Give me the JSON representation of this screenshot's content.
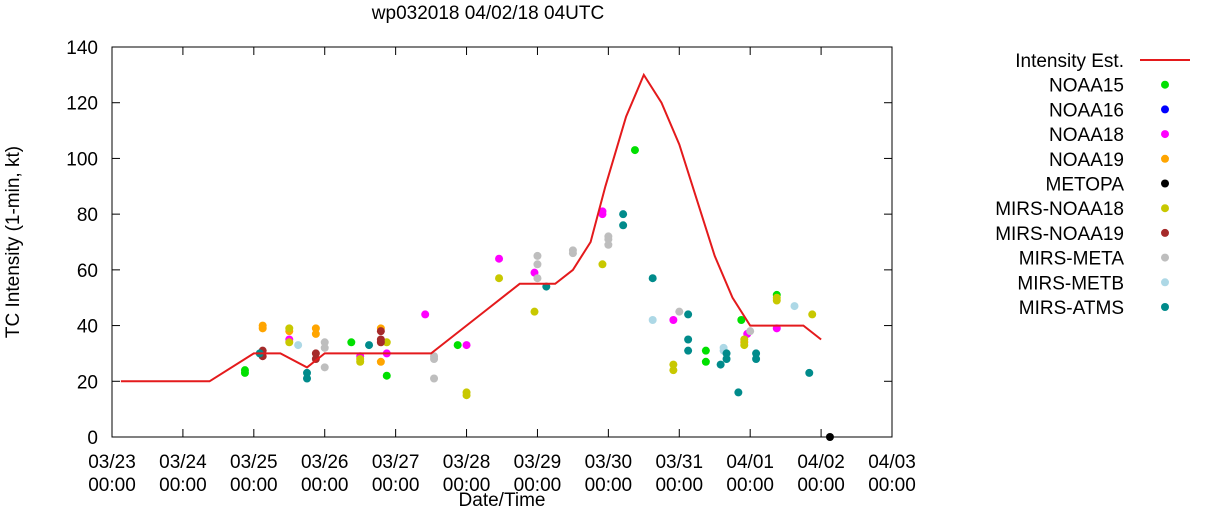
{
  "chart_data": {
    "type": "scatter",
    "title": "wp032018 04/02/18 04UTC",
    "xlabel": "Date/Time",
    "ylabel": "TC Intensity (1-min, kt)",
    "ylim": [
      0,
      140
    ],
    "yticks": [
      0,
      20,
      40,
      60,
      80,
      100,
      120,
      140
    ],
    "xlim": [
      "2018-03-23T00:00",
      "2018-04-03T00:00"
    ],
    "xtick_labels": [
      [
        "03/23",
        "00:00"
      ],
      [
        "03/24",
        "00:00"
      ],
      [
        "03/25",
        "00:00"
      ],
      [
        "03/26",
        "00:00"
      ],
      [
        "03/27",
        "00:00"
      ],
      [
        "03/28",
        "00:00"
      ],
      [
        "03/29",
        "00:00"
      ],
      [
        "03/30",
        "00:00"
      ],
      [
        "03/31",
        "00:00"
      ],
      [
        "04/01",
        "00:00"
      ],
      [
        "04/02",
        "00:00"
      ],
      [
        "04/03",
        "00:00"
      ]
    ],
    "grid": false,
    "legend_position": "right",
    "line_series": {
      "name": "Intensity Est.",
      "color": "#e41a1c",
      "x": [
        "2018-03-23T03:00",
        "2018-03-24T09:00",
        "2018-03-25T00:00",
        "2018-03-25T09:00",
        "2018-03-25T18:00",
        "2018-03-26T00:00",
        "2018-03-26T12:00",
        "2018-03-27T00:00",
        "2018-03-27T06:00",
        "2018-03-27T12:00",
        "2018-03-28T06:00",
        "2018-03-28T18:00",
        "2018-03-29T06:00",
        "2018-03-29T12:00",
        "2018-03-29T18:00",
        "2018-03-29T23:00",
        "2018-03-30T06:00",
        "2018-03-30T12:00",
        "2018-03-30T18:00",
        "2018-03-31T00:00",
        "2018-03-31T06:00",
        "2018-03-31T12:00",
        "2018-03-31T18:00",
        "2018-04-01T00:00",
        "2018-04-01T18:00",
        "2018-04-02T00:00"
      ],
      "y": [
        20,
        20,
        30,
        30,
        25,
        30,
        30,
        30,
        30,
        30,
        45,
        55,
        55,
        60,
        70,
        90,
        115,
        130,
        120,
        105,
        85,
        65,
        50,
        40,
        40,
        35
      ]
    },
    "series": [
      {
        "name": "NOAA15",
        "color": "#00e000",
        "points": [
          [
            "2018-03-24T21:00",
            23
          ],
          [
            "2018-03-24T21:00",
            24
          ],
          [
            "2018-03-26T09:00",
            34
          ],
          [
            "2018-03-26T21:00",
            22
          ],
          [
            "2018-03-27T21:00",
            33
          ],
          [
            "2018-03-30T09:00",
            103
          ],
          [
            "2018-03-31T09:00",
            31
          ],
          [
            "2018-03-31T09:00",
            27
          ],
          [
            "2018-03-31T21:00",
            42
          ],
          [
            "2018-04-01T09:00",
            51
          ]
        ]
      },
      {
        "name": "NOAA16",
        "color": "#0000ff",
        "points": []
      },
      {
        "name": "NOAA18",
        "color": "#ff00ff",
        "points": [
          [
            "2018-03-25T12:00",
            35
          ],
          [
            "2018-03-26T12:00",
            29
          ],
          [
            "2018-03-26T21:00",
            30
          ],
          [
            "2018-03-27T10:00",
            44
          ],
          [
            "2018-03-28T00:00",
            33
          ],
          [
            "2018-03-28T11:00",
            64
          ],
          [
            "2018-03-28T23:00",
            59
          ],
          [
            "2018-03-29T22:00",
            81
          ],
          [
            "2018-03-29T22:00",
            80
          ],
          [
            "2018-03-30T22:00",
            42
          ],
          [
            "2018-04-01T09:00",
            39
          ],
          [
            "2018-03-31T23:00",
            37
          ]
        ]
      },
      {
        "name": "NOAA19",
        "color": "#ffa500",
        "points": [
          [
            "2018-03-25T03:00",
            40
          ],
          [
            "2018-03-25T03:00",
            39
          ],
          [
            "2018-03-25T12:00",
            38
          ],
          [
            "2018-03-25T21:00",
            39
          ],
          [
            "2018-03-25T21:00",
            37
          ],
          [
            "2018-03-26T19:00",
            39
          ],
          [
            "2018-03-26T19:00",
            27
          ],
          [
            "2018-03-31T22:00",
            34
          ]
        ]
      },
      {
        "name": "METOPA",
        "color": "#000000",
        "points": [
          [
            "2018-04-02T03:00",
            0
          ]
        ]
      },
      {
        "name": "MIRS-NOAA18",
        "color": "#c8c800",
        "points": [
          [
            "2018-03-25T12:00",
            39
          ],
          [
            "2018-03-25T12:00",
            34
          ],
          [
            "2018-03-26T12:00",
            28
          ],
          [
            "2018-03-26T12:00",
            27
          ],
          [
            "2018-03-26T21:00",
            34
          ],
          [
            "2018-03-28T00:00",
            16
          ],
          [
            "2018-03-28T00:00",
            15
          ],
          [
            "2018-03-28T11:00",
            57
          ],
          [
            "2018-03-28T23:00",
            45
          ],
          [
            "2018-03-29T22:00",
            62
          ],
          [
            "2018-03-30T22:00",
            26
          ],
          [
            "2018-03-30T22:00",
            24
          ],
          [
            "2018-03-31T22:00",
            33
          ],
          [
            "2018-03-31T22:00",
            35
          ],
          [
            "2018-04-01T09:00",
            50
          ],
          [
            "2018-04-01T09:00",
            49
          ],
          [
            "2018-04-01T21:00",
            44
          ]
        ]
      },
      {
        "name": "MIRS-NOAA19",
        "color": "#a52a2a",
        "points": [
          [
            "2018-03-25T03:00",
            31
          ],
          [
            "2018-03-25T03:00",
            29
          ],
          [
            "2018-03-25T21:00",
            30
          ],
          [
            "2018-03-25T21:00",
            28
          ],
          [
            "2018-03-26T19:00",
            38
          ],
          [
            "2018-03-26T19:00",
            35
          ],
          [
            "2018-03-26T19:00",
            34
          ]
        ]
      },
      {
        "name": "MIRS-META",
        "color": "#bebebe",
        "points": [
          [
            "2018-03-26T00:00",
            34
          ],
          [
            "2018-03-26T00:00",
            32
          ],
          [
            "2018-03-26T00:00",
            25
          ],
          [
            "2018-03-27T13:00",
            29
          ],
          [
            "2018-03-27T13:00",
            28
          ],
          [
            "2018-03-27T13:00",
            21
          ],
          [
            "2018-03-29T00:00",
            65
          ],
          [
            "2018-03-29T00:00",
            62
          ],
          [
            "2018-03-29T00:00",
            57
          ],
          [
            "2018-03-29T12:00",
            67
          ],
          [
            "2018-03-29T12:00",
            66
          ],
          [
            "2018-03-30T00:00",
            72
          ],
          [
            "2018-03-30T00:00",
            71
          ],
          [
            "2018-03-30T00:00",
            69
          ],
          [
            "2018-03-31T00:00",
            45
          ],
          [
            "2018-04-01T00:00",
            38
          ]
        ]
      },
      {
        "name": "MIRS-METB",
        "color": "#add8e6",
        "points": [
          [
            "2018-03-25T15:00",
            33
          ],
          [
            "2018-03-30T15:00",
            42
          ],
          [
            "2018-03-31T15:00",
            32
          ],
          [
            "2018-03-31T15:00",
            31
          ],
          [
            "2018-04-01T15:00",
            47
          ]
        ]
      },
      {
        "name": "MIRS-ATMS",
        "color": "#008b8b",
        "points": [
          [
            "2018-03-25T02:00",
            30
          ],
          [
            "2018-03-25T18:00",
            23
          ],
          [
            "2018-03-25T18:00",
            21
          ],
          [
            "2018-03-26T15:00",
            33
          ],
          [
            "2018-03-29T03:00",
            54
          ],
          [
            "2018-03-30T05:00",
            80
          ],
          [
            "2018-03-30T05:00",
            76
          ],
          [
            "2018-03-30T15:00",
            57
          ],
          [
            "2018-03-31T03:00",
            44
          ],
          [
            "2018-03-31T03:00",
            35
          ],
          [
            "2018-03-31T03:00",
            31
          ],
          [
            "2018-03-31T14:00",
            26
          ],
          [
            "2018-03-31T16:00",
            30
          ],
          [
            "2018-03-31T16:00",
            28
          ],
          [
            "2018-04-01T02:00",
            30
          ],
          [
            "2018-04-01T02:00",
            28
          ],
          [
            "2018-04-01T20:00",
            23
          ],
          [
            "2018-03-31T20:00",
            16
          ]
        ]
      }
    ]
  }
}
